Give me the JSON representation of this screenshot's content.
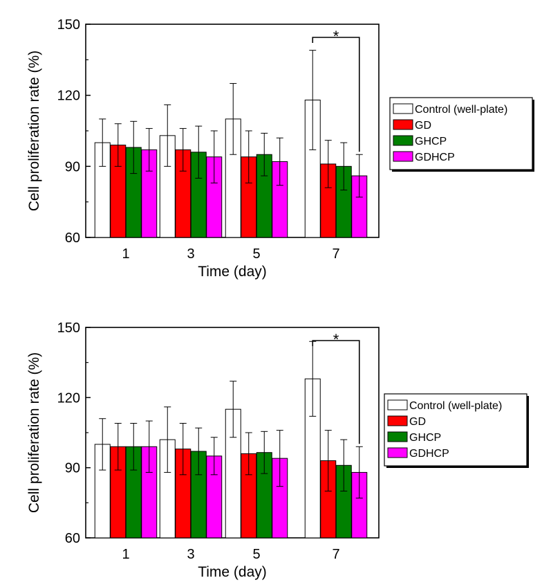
{
  "chart_data": [
    {
      "type": "bar",
      "xlabel": "Time (day)",
      "ylabel": "Cell proliferation rate (%)",
      "ylim": [
        60,
        150
      ],
      "yticks": [
        60,
        90,
        120,
        150
      ],
      "categories": [
        "1",
        "3",
        "5",
        "7"
      ],
      "series": [
        {
          "name": "Control (well-plate)",
          "color": "#ffffff",
          "values": [
            100,
            103,
            110,
            118
          ],
          "errors": [
            10,
            13,
            15,
            21
          ]
        },
        {
          "name": "GD",
          "color": "#ff0000",
          "values": [
            99,
            97,
            94,
            91
          ],
          "errors": [
            9,
            9,
            11,
            10
          ]
        },
        {
          "name": "GHCP",
          "color": "#008000",
          "values": [
            98,
            96,
            95,
            90
          ],
          "errors": [
            11,
            11,
            9,
            10
          ]
        },
        {
          "name": "GDHCP",
          "color": "#ff00ff",
          "values": [
            97,
            94,
            92,
            86
          ],
          "errors": [
            9,
            11,
            10,
            9
          ]
        }
      ],
      "legend_position": "right",
      "annotation": {
        "text": "*",
        "category": "7",
        "between": [
          "Control (well-plate)",
          "GDHCP"
        ]
      }
    },
    {
      "type": "bar",
      "xlabel": "Time (day)",
      "ylabel": "Cell proliferation rate (%)",
      "ylim": [
        60,
        150
      ],
      "yticks": [
        60,
        90,
        120,
        150
      ],
      "categories": [
        "1",
        "3",
        "5",
        "7"
      ],
      "series": [
        {
          "name": "Control (well-plate)",
          "color": "#ffffff",
          "values": [
            100,
            102,
            115,
            128
          ],
          "errors": [
            11,
            14,
            12,
            16
          ]
        },
        {
          "name": "GD",
          "color": "#ff0000",
          "values": [
            99,
            98,
            96,
            93
          ],
          "errors": [
            10,
            11,
            9,
            13
          ]
        },
        {
          "name": "GHCP",
          "color": "#008000",
          "values": [
            99,
            97,
            96.5,
            91
          ],
          "errors": [
            10,
            10,
            9,
            11
          ]
        },
        {
          "name": "GDHCP",
          "color": "#ff00ff",
          "values": [
            99,
            95,
            94,
            88
          ],
          "errors": [
            11,
            8,
            12,
            11
          ]
        }
      ],
      "legend_position": "right",
      "annotation": {
        "text": "*",
        "category": "7",
        "between": [
          "Control (well-plate)",
          "GDHCP"
        ]
      }
    }
  ]
}
